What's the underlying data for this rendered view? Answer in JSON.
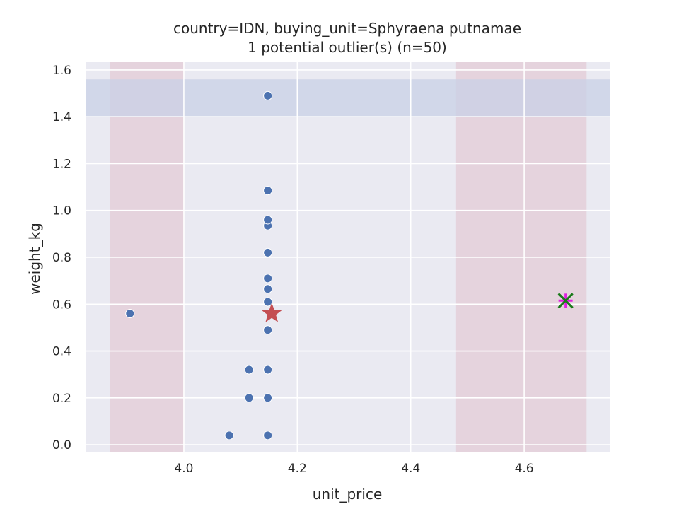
{
  "chart_data": {
    "type": "scatter",
    "title_line1": "country=IDN, buying_unit=Sphyraena putnamae",
    "title_line2": "1 potential outlier(s) (n=50)",
    "xlabel": "unit_price",
    "ylabel": "weight_kg",
    "xlim": [
      3.828,
      4.752
    ],
    "ylim": [
      -0.033,
      1.633
    ],
    "xticks": [
      4.0,
      4.2,
      4.4,
      4.6
    ],
    "xtick_labels": [
      "4.0",
      "4.2",
      "4.4",
      "4.6"
    ],
    "yticks": [
      0.0,
      0.2,
      0.4,
      0.6,
      0.8,
      1.0,
      1.2,
      1.4,
      1.6
    ],
    "ytick_labels": [
      "0.0",
      "0.2",
      "0.4",
      "0.6",
      "0.8",
      "1.0",
      "1.2",
      "1.4",
      "1.6"
    ],
    "grid": true,
    "colors": {
      "background": "#eaeaf2",
      "grid": "#ffffff",
      "points": "#4c72b0",
      "point_edge": "#ffffff",
      "star": "#c44e52",
      "outlier_x": "#1a7a1a",
      "outlier_plus": "#e020e0",
      "x_band": "#e0b8c4",
      "y_band": "#c8d0e6"
    },
    "x_bands": [
      [
        3.87,
        4.0
      ],
      [
        4.48,
        4.71
      ]
    ],
    "y_bands": [
      [
        1.4,
        1.56
      ]
    ],
    "points": [
      {
        "x": 3.905,
        "y": 0.56
      },
      {
        "x": 4.08,
        "y": 0.04
      },
      {
        "x": 4.115,
        "y": 0.2
      },
      {
        "x": 4.115,
        "y": 0.32
      },
      {
        "x": 4.148,
        "y": 0.04
      },
      {
        "x": 4.148,
        "y": 0.2
      },
      {
        "x": 4.148,
        "y": 0.32
      },
      {
        "x": 4.148,
        "y": 0.49
      },
      {
        "x": 4.148,
        "y": 0.61
      },
      {
        "x": 4.148,
        "y": 0.665
      },
      {
        "x": 4.148,
        "y": 0.71
      },
      {
        "x": 4.148,
        "y": 0.82
      },
      {
        "x": 4.148,
        "y": 0.935
      },
      {
        "x": 4.148,
        "y": 0.96
      },
      {
        "x": 4.148,
        "y": 1.085
      },
      {
        "x": 4.148,
        "y": 1.49
      }
    ],
    "mean_marker": {
      "x": 4.155,
      "y": 0.56
    },
    "outlier": {
      "x": 4.673,
      "y": 0.615
    }
  }
}
